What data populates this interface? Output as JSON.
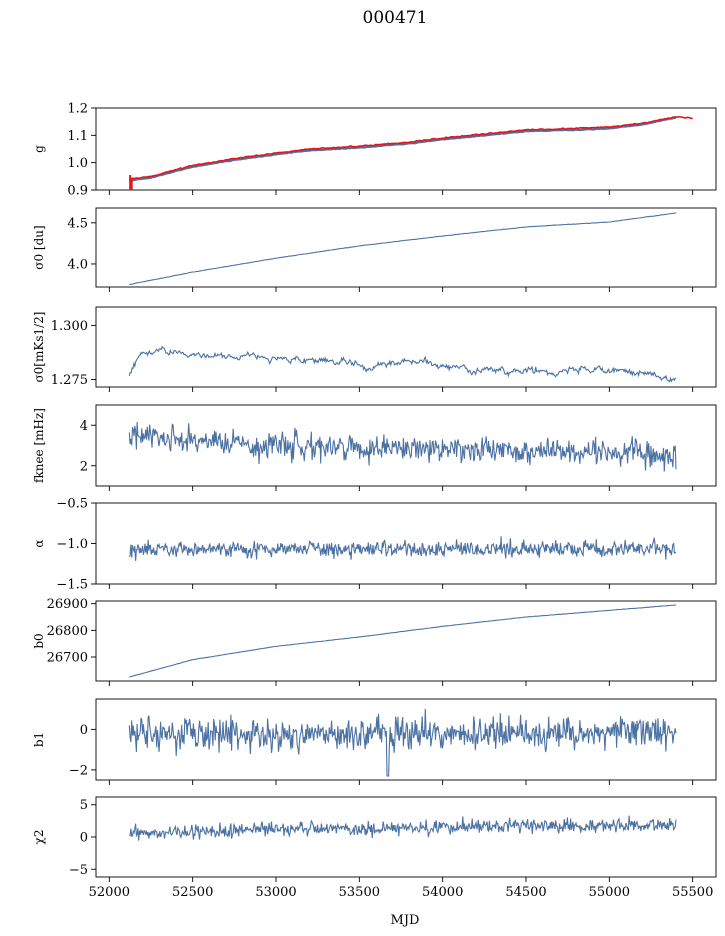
{
  "title": "000471",
  "colors": {
    "series": "#4c72a4",
    "overlay": "#e8141a",
    "axis": "#000000"
  },
  "chart_data": {
    "type": "line",
    "xlabel": "MJD",
    "xlim": [
      51920,
      55640
    ],
    "xticks": [
      52000,
      52500,
      53000,
      53500,
      54000,
      54500,
      55000,
      55500
    ],
    "x_range": [
      52120,
      55400
    ],
    "panels": [
      {
        "ylabel": "g",
        "ylim": [
          0.9,
          1.2
        ],
        "yticks": [
          0.9,
          1.0,
          1.1,
          1.2
        ],
        "yticklabels": [
          "0.9",
          "1.0",
          "1.1",
          "1.2"
        ],
        "x": [
          52120,
          52250,
          52500,
          52750,
          53000,
          53200,
          53500,
          53800,
          54000,
          54250,
          54500,
          54800,
          55000,
          55200,
          55400
        ],
        "y": [
          0.935,
          0.945,
          0.985,
          1.01,
          1.03,
          1.045,
          1.055,
          1.07,
          1.085,
          1.1,
          1.115,
          1.12,
          1.125,
          1.14,
          1.165
        ],
        "overlay": {
          "x": [
            52120,
            52250,
            52500,
            52750,
            53000,
            53200,
            53500,
            53800,
            54000,
            54250,
            54500,
            54800,
            55000,
            55200,
            55400,
            55500
          ],
          "y": [
            0.94,
            0.95,
            0.99,
            1.015,
            1.035,
            1.05,
            1.06,
            1.075,
            1.09,
            1.105,
            1.12,
            1.125,
            1.13,
            1.145,
            1.168,
            1.163
          ]
        }
      },
      {
        "ylabel": "σ0 [du]",
        "ylim": [
          3.72,
          4.68
        ],
        "yticks": [
          4.0,
          4.5
        ],
        "yticklabels": [
          "4.0",
          "4.5"
        ],
        "x": [
          52120,
          52500,
          53000,
          53500,
          54000,
          54500,
          55000,
          55400
        ],
        "y": [
          3.75,
          3.9,
          4.07,
          4.22,
          4.34,
          4.45,
          4.51,
          4.62
        ]
      },
      {
        "ylabel": "σ0[mKs1/2]",
        "ylim": [
          1.2715,
          1.3085
        ],
        "yticks": [
          1.275,
          1.3
        ],
        "yticklabels": [
          "1.275",
          "1.300"
        ],
        "x": [
          52120,
          52200,
          52300,
          52500,
          52800,
          53000,
          53300,
          53600,
          54000,
          54300,
          54600,
          55000,
          55200,
          55400
        ],
        "y": [
          1.276,
          1.2875,
          1.288,
          1.286,
          1.285,
          1.2845,
          1.283,
          1.2815,
          1.2825,
          1.279,
          1.279,
          1.279,
          1.2775,
          1.274
        ]
      },
      {
        "ylabel": "fknee [mHz]",
        "ylim": [
          1.0,
          5.0
        ],
        "yticks": [
          2,
          4
        ],
        "yticklabels": [
          "2",
          "4"
        ],
        "x": [
          52120,
          52500,
          53000,
          53500,
          54000,
          54500,
          55000,
          55400
        ],
        "y": [
          3.5,
          3.2,
          3.0,
          2.9,
          2.8,
          2.75,
          2.7,
          2.6
        ]
      },
      {
        "ylabel": "α",
        "ylim": [
          -1.5,
          -0.5
        ],
        "yticks": [
          -1.5,
          -1.0,
          -0.5
        ],
        "yticklabels": [
          "−1.5",
          "−1.0",
          "−0.5"
        ],
        "x": [
          52120,
          55400
        ],
        "y": [
          -1.07,
          -1.07
        ]
      },
      {
        "ylabel": "b0",
        "ylim": [
          26610,
          26910
        ],
        "yticks": [
          26700,
          26800,
          26900
        ],
        "yticklabels": [
          "26700",
          "26800",
          "26900"
        ],
        "x": [
          52120,
          52500,
          53000,
          53500,
          54000,
          54500,
          55000,
          55400
        ],
        "y": [
          26625,
          26690,
          26740,
          26775,
          26815,
          26850,
          26875,
          26895
        ]
      },
      {
        "ylabel": "b1",
        "ylim": [
          -2.5,
          1.5
        ],
        "yticks": [
          -2,
          0
        ],
        "yticklabels": [
          "−2",
          "0"
        ],
        "x": [
          52120,
          55400
        ],
        "y": [
          -0.3,
          -0.1
        ]
      },
      {
        "ylabel": "χ2",
        "ylim": [
          -6.2,
          6.2
        ],
        "yticks": [
          -5,
          0,
          5
        ],
        "yticklabels": [
          "−5",
          "0",
          "5"
        ],
        "x": [
          52120,
          52500,
          53000,
          54000,
          54500,
          55000,
          55400
        ],
        "y": [
          0.4,
          0.9,
          1.2,
          1.5,
          1.9,
          1.7,
          1.9
        ]
      }
    ]
  }
}
